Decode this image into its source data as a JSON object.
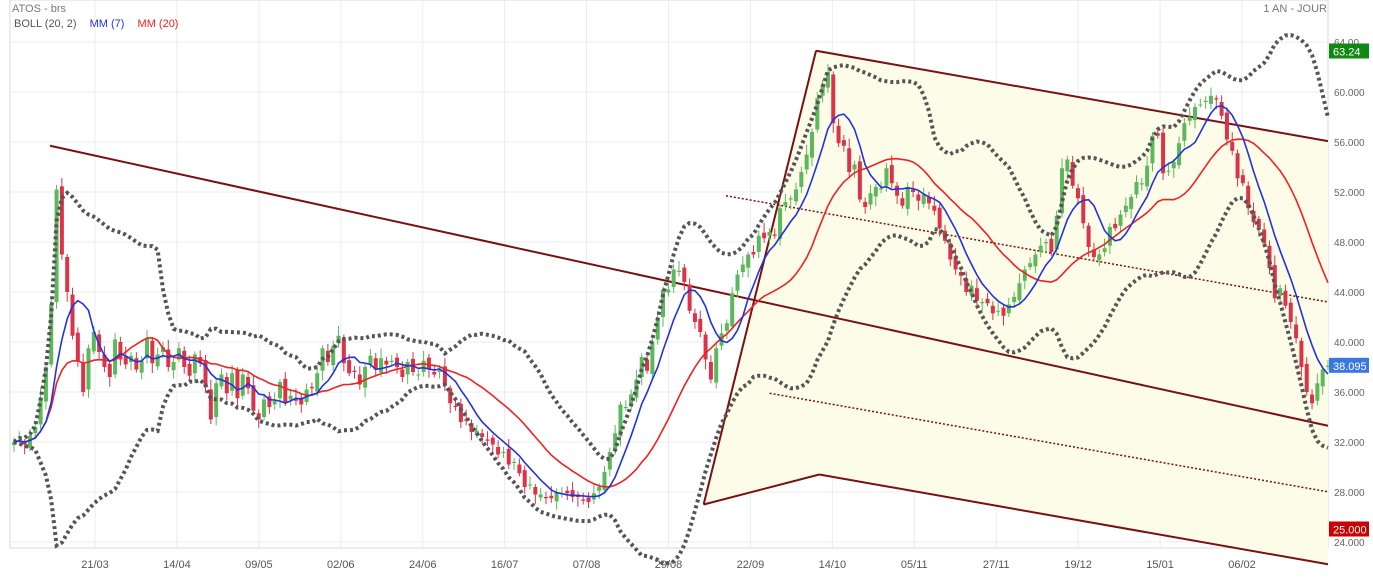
{
  "header": {
    "symbol": "ATOS - brs",
    "timeframe": "1 AN - JOUR"
  },
  "legend": {
    "boll": "BOLL (20, 2)",
    "mm7": "MM (7)",
    "mm20": "MM (20)"
  },
  "colors": {
    "up": "#5cb85c",
    "down": "#d9344a",
    "mm7": "#2233dd",
    "mm20": "#ee2222",
    "boll": "#555555",
    "channel": "#7a1010",
    "fill": "#fdfce8",
    "badge_top": "#118811",
    "badge_last": "#3a78e0",
    "badge_low": "#cc0000"
  },
  "chart_data": {
    "type": "candlestick",
    "y_axis": {
      "min": 24,
      "max": 64,
      "step": 4,
      "ticks": [
        "24.000",
        "28.000",
        "32.000",
        "36.000",
        "40.000",
        "44.000",
        "48.000",
        "52.000",
        "56.000",
        "60.000",
        "64.00"
      ]
    },
    "x_axis": {
      "labels": [
        "21/03",
        "14/04",
        "09/05",
        "02/06",
        "24/06",
        "16/07",
        "07/08",
        "29/08",
        "22/09",
        "14/10",
        "05/11",
        "27/11",
        "19/12",
        "15/01",
        "06/02"
      ]
    },
    "price_badges": {
      "high": "63.24",
      "last": "38.095",
      "low": "25.000"
    },
    "closes": [
      32,
      32.2,
      31.8,
      32.5,
      33.2,
      35.5,
      38.0,
      43.0,
      52.2,
      47.0,
      44.0,
      40.5,
      38.5,
      36.0,
      39.5,
      40.8,
      39.2,
      38.0,
      37.2,
      40.2,
      38.6,
      38.2,
      38.9,
      37.8,
      38.5,
      40.3,
      38.3,
      39.0,
      39.6,
      38.0,
      38.4,
      39.5,
      38.0,
      37.3,
      39.0,
      38.3,
      36.4,
      33.8,
      36.7,
      37.4,
      35.9,
      37.5,
      35.5,
      37.4,
      36.3,
      34.5,
      33.8,
      35.4,
      34.8,
      35.3,
      36.8,
      35.2,
      35.7,
      35.3,
      35.0,
      36.2,
      36.3,
      37.5,
      39.5,
      38.4,
      39.7,
      40.5,
      38.3,
      37.5,
      37.6,
      36.6,
      38.0,
      38.9,
      37.8,
      38.7,
      38.2,
      38.5,
      38.0,
      37.2,
      38.4,
      37.6,
      37.4,
      38.5,
      37.8,
      37.4,
      37.8,
      36.5,
      35.1,
      34.8,
      33.6,
      33.7,
      32.8,
      32.9,
      32.4,
      32.1,
      31.8,
      31.0,
      31.2,
      30.2,
      30.4,
      29.5,
      28.4,
      28.6,
      27.8,
      27.8,
      27.5,
      27.5,
      28.0,
      27.9,
      27.9,
      27.6,
      27.6,
      27.3,
      27.2,
      27.9,
      28.4,
      29.6,
      31.2,
      32.7,
      35.0,
      34.8,
      35.8,
      37.0,
      38.8,
      37.7,
      40.0,
      41.8,
      44.2,
      44.2,
      45.8,
      45.7,
      44.8,
      42.5,
      41.6,
      40.8,
      38.6,
      37.0,
      39.5,
      40.7,
      41.5,
      43.9,
      45.4,
      46.2,
      47.0,
      47.0,
      48.5,
      48.3,
      48.8,
      48.5,
      50.7,
      51.2,
      51.5,
      52.2,
      53.6,
      55.0,
      56.8,
      59.5,
      60.6,
      61.6,
      57.5,
      55.9,
      55.7,
      53.6,
      54.2,
      51.4,
      50.8,
      51.9,
      52.4,
      52.3,
      53.9,
      52.7,
      51.7,
      50.9,
      52.4,
      52.0,
      51.3,
      51.8,
      51.1,
      50.5,
      49.1,
      48.1,
      46.6,
      45.8,
      45.3,
      44.0,
      44.5,
      43.3,
      43.2,
      43.1,
      42.3,
      42.5,
      42.1,
      43.0,
      43.6,
      44.7,
      45.8,
      46.3,
      47.0,
      47.7,
      48.0,
      47.2,
      50.1,
      53.9,
      54.6,
      52.5,
      51.5,
      49.5,
      47.6,
      46.8,
      47.0,
      47.5,
      49.2,
      49.1,
      50.2,
      50.9,
      51.6,
      52.8,
      52.7,
      54.1,
      56.5,
      56.5,
      53.5,
      53.7,
      54.4,
      55.9,
      57.5,
      58.0,
      58.8,
      59.0,
      59.3,
      59.7,
      59.4,
      58.1,
      56.2,
      55.3,
      53.1,
      52.7,
      50.7,
      49.6,
      49.2,
      47.9,
      45.9,
      43.5,
      44.3,
      42.9,
      41.6,
      40.3,
      38.0,
      36.0,
      35.1,
      36.7,
      37.8,
      38.1
    ],
    "annotations": [
      "Andrews pitchfork (upper, median and lower tines, dashed half-lines)"
    ]
  }
}
